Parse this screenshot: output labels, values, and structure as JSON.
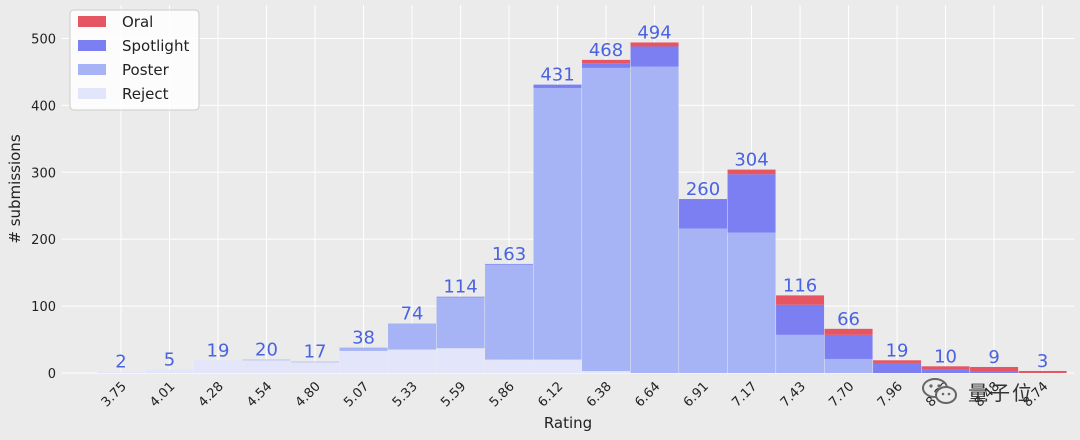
{
  "chart_data": {
    "type": "bar",
    "stacked": true,
    "xlabel": "Rating",
    "ylabel": "# submissions",
    "ylim": [
      0,
      550
    ],
    "yticks": [
      0,
      100,
      200,
      300,
      400,
      500
    ],
    "grid": true,
    "legend_position": "top-left",
    "categories": [
      "3.75",
      "4.01",
      "4.28",
      "4.54",
      "4.80",
      "5.07",
      "5.33",
      "5.59",
      "5.86",
      "6.12",
      "6.38",
      "6.64",
      "6.91",
      "7.17",
      "7.43",
      "7.70",
      "7.96",
      "8.22",
      "8.48",
      "8.74"
    ],
    "totals": [
      2,
      5,
      19,
      20,
      17,
      38,
      74,
      114,
      163,
      431,
      468,
      494,
      260,
      304,
      116,
      66,
      19,
      10,
      9,
      3
    ],
    "series": [
      {
        "name": "Reject",
        "color": "#e3e6fa",
        "values": [
          2,
          5,
          19,
          19,
          16,
          33,
          35,
          37,
          20,
          20,
          3,
          0,
          0,
          0,
          0,
          0,
          0,
          0,
          0,
          0
        ]
      },
      {
        "name": "Poster",
        "color": "#a6b4f5",
        "values": [
          0,
          0,
          0,
          1,
          1,
          5,
          39,
          76,
          142,
          406,
          453,
          458,
          216,
          210,
          57,
          21,
          0,
          0,
          0,
          0
        ]
      },
      {
        "name": "Spotlight",
        "color": "#7b7ff2",
        "values": [
          0,
          0,
          0,
          0,
          0,
          0,
          0,
          1,
          1,
          5,
          7,
          30,
          44,
          87,
          45,
          36,
          15,
          5,
          3,
          0
        ]
      },
      {
        "name": "Oral",
        "color": "#e55562",
        "values": [
          0,
          0,
          0,
          0,
          0,
          0,
          0,
          0,
          0,
          0,
          5,
          6,
          0,
          7,
          14,
          9,
          4,
          5,
          6,
          3
        ]
      }
    ]
  },
  "watermark": {
    "text": "量子位",
    "icon": "wechat-icon"
  }
}
